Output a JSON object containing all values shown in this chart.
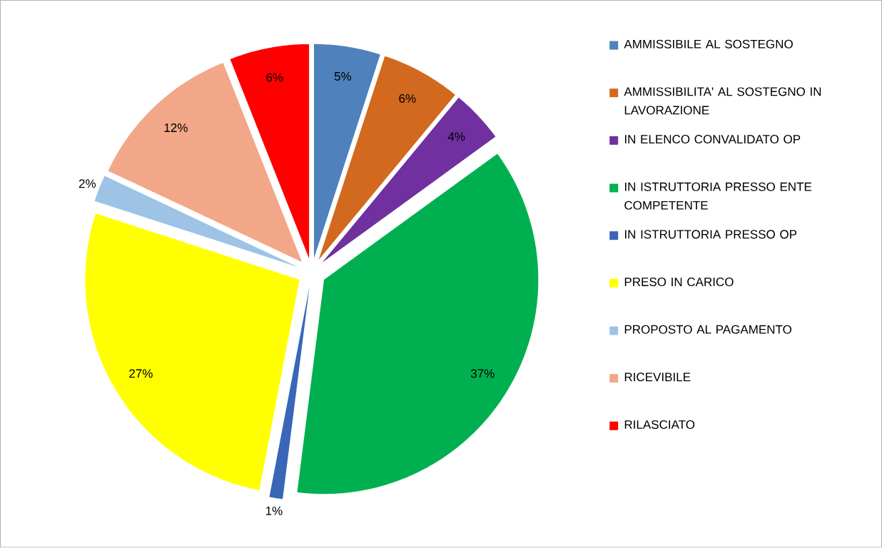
{
  "chart_data": {
    "type": "pie",
    "categories": [
      "AMMISSIBILE AL SOSTEGNO",
      "AMMISSIBILITA' AL SOSTEGNO IN LAVORAZIONE",
      "IN ELENCO CONVALIDATO OP",
      "IN ISTRUTTORIA PRESSO ENTE COMPETENTE",
      "IN ISTRUTTORIA PRESSO OP",
      "PRESO IN CARICO",
      "PROPOSTO AL PAGAMENTO",
      "RICEVIBILE",
      "RILASCIATO"
    ],
    "values": [
      5,
      6,
      4,
      37,
      1,
      27,
      2,
      12,
      6
    ],
    "value_labels": [
      "5%",
      "6%",
      "4%",
      "37%",
      "1%",
      "27%",
      "2%",
      "12%",
      "6%"
    ],
    "colors": [
      "#4f81bd",
      "#d2691e",
      "#7030a0",
      "#00b050",
      "#3a66b8",
      "#ffff00",
      "#9dc3e6",
      "#f2a788",
      "#ff0000"
    ],
    "legend": "right"
  }
}
